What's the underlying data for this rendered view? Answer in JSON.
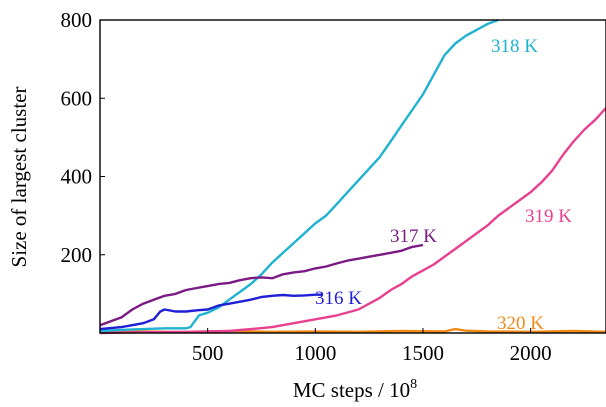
{
  "chart_data": {
    "type": "line",
    "xlabel": "MC steps / 10",
    "xlabel_exp": "8",
    "ylabel": "Size of largest cluster",
    "xlim": [
      0,
      2350
    ],
    "ylim": [
      0,
      800
    ],
    "x_ticks": [
      500,
      1000,
      1500,
      2000
    ],
    "x_tick_labels": [
      "500",
      "1000",
      "1500",
      "2000"
    ],
    "y_ticks": [
      200,
      400,
      600,
      800
    ],
    "y_tick_labels": [
      "200",
      "400",
      "600",
      "800"
    ],
    "grid": false,
    "legend": "inline labels",
    "series": [
      {
        "name": "316 K",
        "color": "#1f1fd6",
        "x": [
          0,
          100,
          200,
          250,
          280,
          300,
          350,
          400,
          450,
          500,
          550,
          600,
          650,
          700,
          750,
          800,
          850,
          900,
          950,
          1000,
          1030
        ],
        "y": [
          10,
          15,
          25,
          35,
          55,
          60,
          55,
          55,
          58,
          60,
          70,
          75,
          80,
          85,
          92,
          95,
          97,
          95,
          96,
          98,
          98
        ]
      },
      {
        "name": "317 K",
        "color": "#7b1a84",
        "x": [
          0,
          50,
          100,
          150,
          200,
          250,
          300,
          350,
          400,
          450,
          500,
          550,
          600,
          650,
          700,
          750,
          800,
          850,
          900,
          950,
          1000,
          1050,
          1100,
          1150,
          1200,
          1250,
          1300,
          1350,
          1400,
          1450,
          1500
        ],
        "y": [
          20,
          30,
          40,
          60,
          75,
          85,
          95,
          100,
          110,
          115,
          120,
          125,
          128,
          135,
          140,
          142,
          140,
          150,
          155,
          158,
          165,
          170,
          178,
          185,
          190,
          195,
          200,
          205,
          210,
          220,
          225
        ]
      },
      {
        "name": "318 K",
        "color": "#1fb3d1",
        "x": [
          0,
          100,
          200,
          300,
          400,
          420,
          440,
          460,
          500,
          550,
          600,
          650,
          700,
          750,
          800,
          850,
          900,
          950,
          1000,
          1050,
          1100,
          1150,
          1200,
          1250,
          1300,
          1350,
          1400,
          1450,
          1500,
          1550,
          1600,
          1650,
          1700,
          1750,
          1800,
          1850
        ],
        "y": [
          5,
          8,
          10,
          12,
          12,
          15,
          30,
          45,
          52,
          65,
          85,
          105,
          125,
          150,
          180,
          205,
          230,
          255,
          280,
          300,
          330,
          360,
          390,
          420,
          450,
          490,
          530,
          570,
          610,
          660,
          710,
          740,
          760,
          775,
          790,
          800
        ]
      },
      {
        "name": "319 K",
        "color": "#e8408f",
        "x": [
          0,
          200,
          400,
          600,
          700,
          800,
          900,
          1000,
          1100,
          1200,
          1250,
          1300,
          1350,
          1400,
          1450,
          1500,
          1550,
          1600,
          1650,
          1700,
          1750,
          1800,
          1850,
          1900,
          1950,
          2000,
          2050,
          2100,
          2150,
          2200,
          2250,
          2300,
          2350
        ],
        "y": [
          0,
          2,
          3,
          5,
          10,
          15,
          25,
          35,
          45,
          60,
          75,
          90,
          110,
          125,
          145,
          160,
          175,
          195,
          215,
          235,
          255,
          275,
          300,
          320,
          340,
          360,
          385,
          415,
          455,
          490,
          520,
          545,
          575
        ]
      },
      {
        "name": "320 K",
        "color": "#f08a17",
        "x": [
          0,
          200,
          400,
          600,
          800,
          1000,
          1200,
          1400,
          1600,
          1650,
          1700,
          1800,
          2000,
          2200,
          2350
        ],
        "y": [
          3,
          4,
          2,
          5,
          3,
          4,
          3,
          5,
          4,
          10,
          6,
          4,
          3,
          5,
          3
        ]
      }
    ]
  }
}
